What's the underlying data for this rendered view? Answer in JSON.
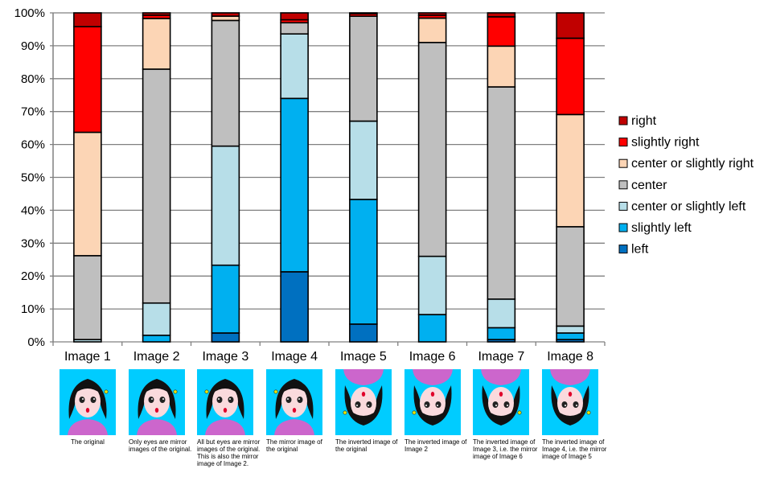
{
  "chart_data": {
    "type": "bar",
    "stacked": true,
    "normalized": true,
    "categories": [
      "Image 1",
      "Image 2",
      "Image 3",
      "Image 4",
      "Image 5",
      "Image 6",
      "Image 7",
      "Image 8"
    ],
    "y_ticks": [
      "0%",
      "10%",
      "20%",
      "30%",
      "40%",
      "50%",
      "60%",
      "70%",
      "80%",
      "90%",
      "100%"
    ],
    "ylim": [
      0,
      100
    ],
    "grid": true,
    "legend_position": "right",
    "series": [
      {
        "name": "left",
        "color": "#0070C0",
        "values": [
          0,
          0,
          2.7,
          21.3,
          5.4,
          0,
          0.7,
          0.7
        ]
      },
      {
        "name": "slightly left",
        "color": "#00B0F0",
        "values": [
          0,
          2,
          20.6,
          52.7,
          37.9,
          8.3,
          3.6,
          2.0
        ]
      },
      {
        "name": "center or slightly left",
        "color": "#B7DEE8",
        "values": [
          0.7,
          9.8,
          36.2,
          19.6,
          23.8,
          17.7,
          8.7,
          2.1
        ]
      },
      {
        "name": "center",
        "color": "#BFBFBF",
        "values": [
          25.5,
          71.1,
          38.2,
          3.4,
          31.9,
          65.0,
          64.5,
          30.2
        ]
      },
      {
        "name": "center or slightly right",
        "color": "#FCD5B5",
        "values": [
          37.5,
          15.4,
          1.3,
          0,
          0,
          7.4,
          12.4,
          34.1
        ]
      },
      {
        "name": "slightly right",
        "color": "#FF0000",
        "values": [
          32.1,
          1.0,
          0,
          0.9,
          0.7,
          0.9,
          8.9,
          23.2
        ]
      },
      {
        "name": "right",
        "color": "#C00000",
        "values": [
          4.2,
          0.7,
          1.0,
          2.1,
          0.3,
          0.7,
          1.2,
          7.7
        ]
      }
    ],
    "legend_order": [
      "right",
      "slightly right",
      "center or slightly right",
      "center",
      "center or slightly left",
      "slightly left",
      "left"
    ]
  },
  "captions": [
    "The original",
    "Only eyes are mirror images of the original.",
    "All but eyes are mirror images of the original. This is also the mirror image of Image 2.",
    "The mirror image of the original",
    "The inverted image of the original",
    "The inverted image of Image 2",
    "The inverted image of Image 3, i.e. the mirror image of Image 6",
    "The inverted image of Image 4, i.e. the mirror image of Image 5"
  ],
  "thumbnails": {
    "background_color": "#00CCFF",
    "icon": "face-illustration-icon",
    "inverted": [
      false,
      false,
      false,
      false,
      true,
      true,
      true,
      true
    ]
  }
}
